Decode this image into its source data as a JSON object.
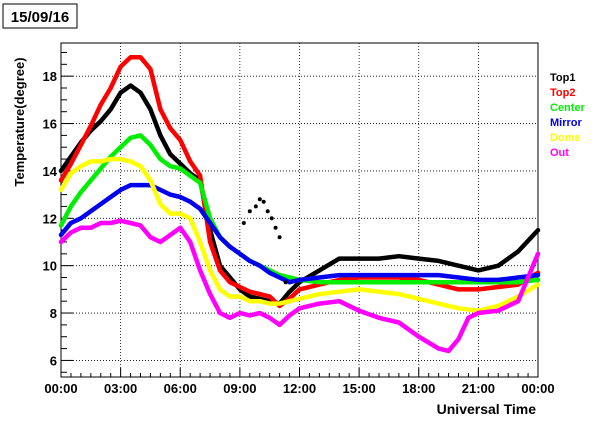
{
  "chart_data": {
    "type": "scatter",
    "title": "15/09/16",
    "xlabel": "Universal Time",
    "ylabel": "Temperature(degree)",
    "xlim": [
      0,
      24
    ],
    "ylim": [
      5.3,
      19.4
    ],
    "grid": true,
    "legend_placement": "right-outside",
    "x_ticks": [
      {
        "v": 0,
        "label": "00:00"
      },
      {
        "v": 3,
        "label": "03:00"
      },
      {
        "v": 6,
        "label": "06:00"
      },
      {
        "v": 9,
        "label": "09:00"
      },
      {
        "v": 12,
        "label": "12:00"
      },
      {
        "v": 15,
        "label": "15:00"
      },
      {
        "v": 18,
        "label": "18:00"
      },
      {
        "v": 21,
        "label": "21:00"
      },
      {
        "v": 24,
        "label": "00:00"
      }
    ],
    "y_ticks": [
      {
        "v": 6,
        "label": "6"
      },
      {
        "v": 8,
        "label": "8"
      },
      {
        "v": 10,
        "label": "10"
      },
      {
        "v": 12,
        "label": "12"
      },
      {
        "v": 14,
        "label": "14"
      },
      {
        "v": 16,
        "label": "16"
      },
      {
        "v": 18,
        "label": "18"
      }
    ],
    "series": [
      {
        "name": "Top1",
        "color": "#000000",
        "x": [
          0,
          0.5,
          1,
          1.5,
          2,
          2.5,
          3,
          3.5,
          4,
          4.5,
          5,
          5.5,
          6,
          6.5,
          7,
          7.5,
          8,
          8.5,
          9,
          9.5,
          10,
          10.5,
          11,
          11.5,
          12,
          13,
          14,
          15,
          16,
          17,
          18,
          19,
          20,
          21,
          22,
          23,
          24
        ],
        "y": [
          14.0,
          14.6,
          15.2,
          15.7,
          16.1,
          16.6,
          17.3,
          17.6,
          17.3,
          16.6,
          15.5,
          14.7,
          14.3,
          13.9,
          13.6,
          11.5,
          10.0,
          9.5,
          9.0,
          8.7,
          8.6,
          8.5,
          8.4,
          8.9,
          9.3,
          9.8,
          10.3,
          10.3,
          10.3,
          10.4,
          10.3,
          10.2,
          10.0,
          9.8,
          10.0,
          10.6,
          11.5
        ]
      },
      {
        "name": "Top2",
        "color": "#ff0000",
        "x": [
          0,
          0.5,
          1,
          1.5,
          2,
          2.5,
          3,
          3.5,
          4,
          4.5,
          5,
          5.5,
          6,
          6.5,
          7,
          7.5,
          8,
          8.5,
          9,
          9.5,
          10,
          10.5,
          11,
          11.5,
          12,
          13,
          14,
          15,
          16,
          17,
          18,
          19,
          20,
          21,
          22,
          23,
          24
        ],
        "y": [
          13.6,
          14.3,
          15.1,
          15.9,
          16.8,
          17.5,
          18.4,
          18.8,
          18.8,
          18.3,
          16.6,
          15.8,
          15.3,
          14.4,
          13.8,
          11.0,
          9.8,
          9.3,
          9.1,
          8.9,
          8.8,
          8.7,
          8.3,
          8.6,
          9.0,
          9.2,
          9.4,
          9.5,
          9.5,
          9.5,
          9.4,
          9.2,
          9.0,
          9.0,
          9.1,
          9.2,
          9.7
        ]
      },
      {
        "name": "Center",
        "color": "#00ee00",
        "x": [
          0,
          0.5,
          1,
          1.5,
          2,
          2.5,
          3,
          3.5,
          4,
          4.5,
          5,
          5.5,
          6,
          6.5,
          7,
          7.5,
          8,
          8.5,
          9,
          9.5,
          10,
          10.5,
          11,
          11.5,
          12,
          13,
          14,
          15,
          16,
          17,
          18,
          19,
          20,
          21,
          22,
          23,
          24
        ],
        "y": [
          11.7,
          12.5,
          13.1,
          13.6,
          14.1,
          14.6,
          15.0,
          15.4,
          15.5,
          15.1,
          14.5,
          14.2,
          14.1,
          13.8,
          13.5,
          12.0,
          11.2,
          10.8,
          10.5,
          10.2,
          10.0,
          9.8,
          9.6,
          9.5,
          9.4,
          9.3,
          9.3,
          9.3,
          9.3,
          9.3,
          9.3,
          9.3,
          9.3,
          9.3,
          9.3,
          9.3,
          9.4
        ]
      },
      {
        "name": "Mirror",
        "color": "#0000ee",
        "x": [
          0,
          0.5,
          1,
          1.5,
          2,
          2.5,
          3,
          3.5,
          4,
          4.5,
          5,
          5.5,
          6,
          6.5,
          7,
          7.5,
          8,
          8.5,
          9,
          9.5,
          10,
          10.5,
          11,
          11.5,
          12,
          13,
          14,
          15,
          16,
          17,
          18,
          19,
          20,
          21,
          22,
          23,
          24
        ],
        "y": [
          11.3,
          11.8,
          12.0,
          12.3,
          12.6,
          12.9,
          13.2,
          13.4,
          13.4,
          13.4,
          13.2,
          13.0,
          12.9,
          12.7,
          12.4,
          11.8,
          11.2,
          10.8,
          10.5,
          10.2,
          10.0,
          9.7,
          9.5,
          9.3,
          9.4,
          9.5,
          9.6,
          9.6,
          9.6,
          9.6,
          9.6,
          9.6,
          9.5,
          9.4,
          9.4,
          9.5,
          9.6
        ]
      },
      {
        "name": "Dome",
        "color": "#ffff00",
        "x": [
          0,
          0.5,
          1,
          1.5,
          2,
          2.5,
          3,
          3.5,
          4,
          4.5,
          5,
          5.5,
          6,
          6.5,
          7,
          7.5,
          8,
          8.5,
          9,
          9.5,
          10,
          10.5,
          11,
          11.5,
          12,
          13,
          14,
          15,
          16,
          17,
          18,
          19,
          20,
          21,
          22,
          23,
          24
        ],
        "y": [
          13.2,
          13.9,
          14.2,
          14.4,
          14.4,
          14.5,
          14.5,
          14.4,
          14.2,
          13.6,
          12.6,
          12.2,
          12.2,
          12.0,
          11.0,
          9.8,
          9.0,
          8.7,
          8.7,
          8.5,
          8.5,
          8.4,
          8.4,
          8.5,
          8.6,
          8.8,
          8.9,
          9.0,
          8.9,
          8.8,
          8.6,
          8.4,
          8.2,
          8.1,
          8.3,
          8.7,
          9.2
        ]
      },
      {
        "name": "Out",
        "color": "#ff00ff",
        "x": [
          0,
          0.5,
          1,
          1.5,
          2,
          2.5,
          3,
          3.5,
          4,
          4.5,
          5,
          5.5,
          6,
          6.5,
          7,
          7.5,
          8,
          8.5,
          9,
          9.5,
          10,
          10.5,
          11,
          11.5,
          12,
          13,
          14,
          15,
          16,
          17,
          18,
          19,
          19.5,
          20,
          20.5,
          21,
          22,
          23,
          24
        ],
        "y": [
          11.0,
          11.4,
          11.6,
          11.6,
          11.8,
          11.8,
          11.9,
          11.8,
          11.7,
          11.2,
          11.0,
          11.3,
          11.6,
          11.0,
          9.8,
          8.8,
          8.0,
          7.8,
          8.0,
          7.9,
          8.0,
          7.8,
          7.5,
          7.9,
          8.2,
          8.4,
          8.5,
          8.1,
          7.8,
          7.6,
          7.0,
          6.5,
          6.4,
          6.9,
          7.8,
          8.0,
          8.1,
          8.5,
          10.5
        ]
      },
      {
        "name": "",
        "color": "#000000",
        "x": [
          9.2,
          9.5,
          9.8,
          10.0,
          10.2,
          10.4,
          10.6,
          10.8,
          11.0,
          11.3
        ],
        "y": [
          11.8,
          12.3,
          12.5,
          12.8,
          12.7,
          12.3,
          12.0,
          11.6,
          11.2,
          9.3
        ]
      }
    ],
    "legend": [
      {
        "label": "Top1",
        "color": "#000000"
      },
      {
        "label": "Top2",
        "color": "#ff0000"
      },
      {
        "label": "Center",
        "color": "#00ee00"
      },
      {
        "label": "Mirror",
        "color": "#0000ee"
      },
      {
        "label": "Dome",
        "color": "#ffff00"
      },
      {
        "label": "Out",
        "color": "#ff00ff"
      }
    ]
  }
}
